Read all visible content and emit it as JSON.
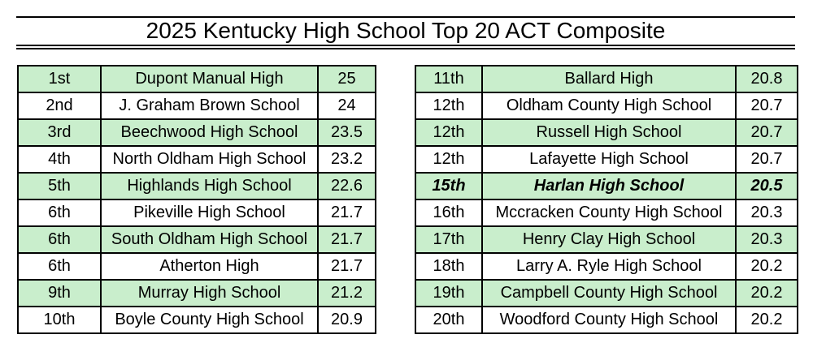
{
  "title": "2025 Kentucky High School Top 20 ACT Composite",
  "colors": {
    "row_highlight": "#C9EECC",
    "border": "#000000",
    "background": "#FFFFFF"
  },
  "tables": [
    {
      "name": "ranks-1-10",
      "rows": [
        {
          "rank": "1st",
          "school": "Dupont Manual High",
          "score": "25",
          "highlight": true,
          "emphasis": false
        },
        {
          "rank": "2nd",
          "school": "J. Graham Brown School",
          "score": "24",
          "highlight": false,
          "emphasis": false
        },
        {
          "rank": "3rd",
          "school": "Beechwood High School",
          "score": "23.5",
          "highlight": true,
          "emphasis": false
        },
        {
          "rank": "4th",
          "school": "North Oldham High School",
          "score": "23.2",
          "highlight": false,
          "emphasis": false
        },
        {
          "rank": "5th",
          "school": "Highlands High School",
          "score": "22.6",
          "highlight": true,
          "emphasis": false
        },
        {
          "rank": "6th",
          "school": "Pikeville High School",
          "score": "21.7",
          "highlight": false,
          "emphasis": false
        },
        {
          "rank": "6th",
          "school": "South Oldham High School",
          "score": "21.7",
          "highlight": true,
          "emphasis": false
        },
        {
          "rank": "6th",
          "school": "Atherton High",
          "score": "21.7",
          "highlight": false,
          "emphasis": false
        },
        {
          "rank": "9th",
          "school": "Murray High School",
          "score": "21.2",
          "highlight": true,
          "emphasis": false
        },
        {
          "rank": "10th",
          "school": "Boyle County High School",
          "score": "20.9",
          "highlight": false,
          "emphasis": false
        }
      ]
    },
    {
      "name": "ranks-11-20",
      "rows": [
        {
          "rank": "11th",
          "school": "Ballard High",
          "score": "20.8",
          "highlight": true,
          "emphasis": false
        },
        {
          "rank": "12th",
          "school": "Oldham County High School",
          "score": "20.7",
          "highlight": false,
          "emphasis": false
        },
        {
          "rank": "12th",
          "school": "Russell High School",
          "score": "20.7",
          "highlight": true,
          "emphasis": false
        },
        {
          "rank": "12th",
          "school": "Lafayette High School",
          "score": "20.7",
          "highlight": false,
          "emphasis": false
        },
        {
          "rank": "15th",
          "school": "Harlan High School",
          "score": "20.5",
          "highlight": true,
          "emphasis": true
        },
        {
          "rank": "16th",
          "school": "Mccracken County High School",
          "score": "20.3",
          "highlight": false,
          "emphasis": false
        },
        {
          "rank": "17th",
          "school": "Henry Clay High School",
          "score": "20.3",
          "highlight": true,
          "emphasis": false
        },
        {
          "rank": "18th",
          "school": "Larry A. Ryle High School",
          "score": "20.2",
          "highlight": false,
          "emphasis": false
        },
        {
          "rank": "19th",
          "school": "Campbell County High School",
          "score": "20.2",
          "highlight": true,
          "emphasis": false
        },
        {
          "rank": "20th",
          "school": "Woodford County High School",
          "score": "20.2",
          "highlight": false,
          "emphasis": false
        }
      ]
    }
  ]
}
